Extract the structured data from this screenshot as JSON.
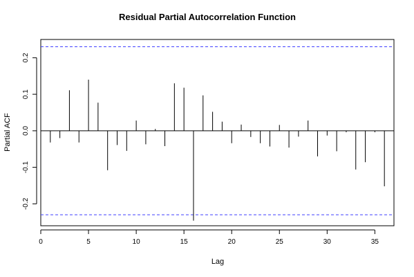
{
  "chart_data": {
    "type": "bar",
    "title": "Residual Partial Autocorrelation Function",
    "xlabel": "Lag",
    "ylabel": "Partial ACF",
    "xlim": [
      0,
      37
    ],
    "ylim": [
      -0.26,
      0.25
    ],
    "x_ticks": [
      0,
      5,
      10,
      15,
      20,
      25,
      30,
      35
    ],
    "y_ticks": [
      -0.2,
      -0.1,
      0.0,
      0.1,
      0.2
    ],
    "y_tick_labels": [
      "-0.2",
      "-0.1",
      "0.0",
      "0.1",
      "0.2"
    ],
    "confidence_bounds": [
      0.23,
      -0.23
    ],
    "confidence_line_color": "#4040ff",
    "lags": [
      1,
      2,
      3,
      4,
      5,
      6,
      7,
      8,
      9,
      10,
      11,
      12,
      13,
      14,
      15,
      16,
      17,
      18,
      19,
      20,
      21,
      22,
      23,
      24,
      25,
      26,
      27,
      28,
      29,
      30,
      31,
      32,
      33,
      34,
      35,
      36
    ],
    "values": [
      -0.032,
      -0.02,
      0.111,
      -0.032,
      0.14,
      0.077,
      -0.108,
      -0.039,
      -0.055,
      0.028,
      -0.037,
      0.005,
      -0.042,
      0.13,
      0.118,
      -0.246,
      0.097,
      0.052,
      0.025,
      -0.034,
      0.017,
      -0.017,
      -0.034,
      -0.043,
      0.016,
      -0.046,
      -0.016,
      0.028,
      -0.07,
      -0.013,
      -0.056,
      -0.004,
      -0.106,
      -0.086,
      -0.004,
      -0.152
    ]
  }
}
